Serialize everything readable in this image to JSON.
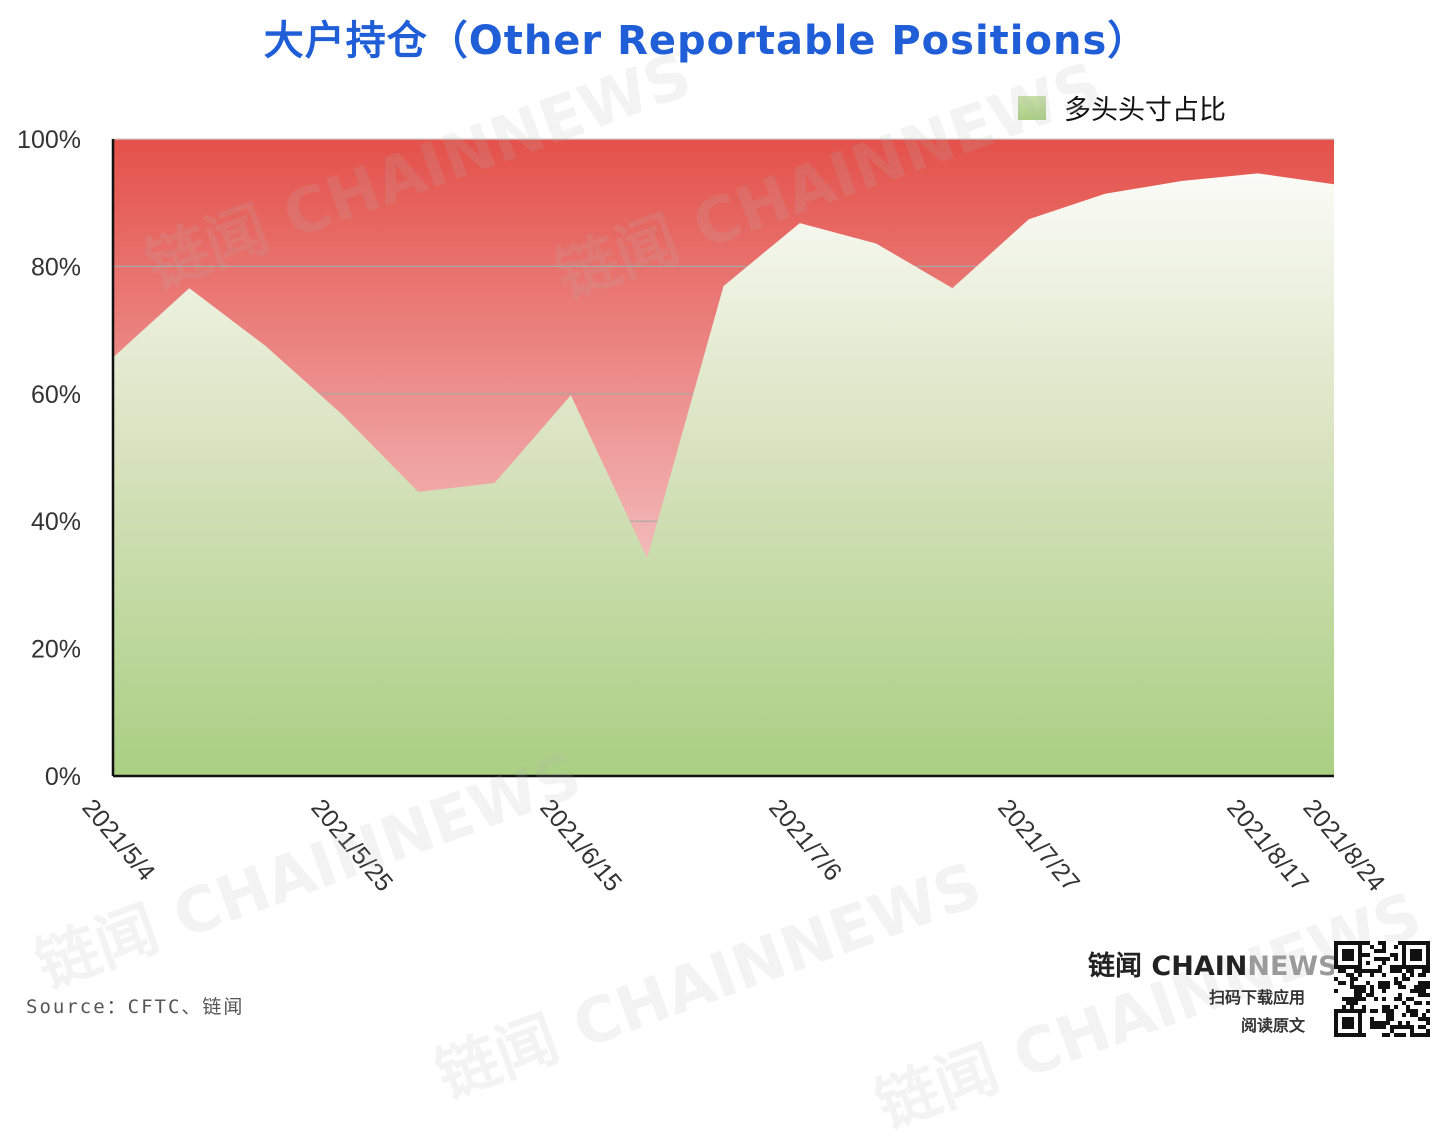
{
  "title": "大户持仓（Other Reportable Positions）",
  "legend": {
    "label": "多头头寸占比"
  },
  "source": "Source：CFTC、链闻",
  "brand": {
    "name_cn": "链闻",
    "name_chain": "CHAIN",
    "name_news": "NEWS",
    "line1": "扫码下载应用",
    "line2": "阅读原文"
  },
  "watermark_text": "链闻 CHAINNEWS",
  "colors": {
    "long_area_top": "#fbfbf7",
    "long_area_bottom": "#a9cf82",
    "short_area_top": "#e4514a",
    "short_area_bottom": "#f2b8b8",
    "title": "#1f5ed6"
  },
  "chart_data": {
    "type": "area",
    "title": "大户持仓（Other Reportable Positions）",
    "xlabel": "",
    "ylabel": "",
    "ylim": [
      0,
      100
    ],
    "y_ticks": [
      "0%",
      "20%",
      "40%",
      "60%",
      "80%",
      "100%"
    ],
    "x_tick_labels": [
      {
        "label": "2021/5/4",
        "index": 0
      },
      {
        "label": "2021/5/25",
        "index": 3
      },
      {
        "label": "2021/6/15",
        "index": 6
      },
      {
        "label": "2021/7/6",
        "index": 9
      },
      {
        "label": "2021/7/27",
        "index": 12
      },
      {
        "label": "2021/8/17",
        "index": 15
      },
      {
        "label": "2021/8/24",
        "index": 16
      }
    ],
    "x": [
      "2021/5/4",
      "2021/5/11",
      "2021/5/18",
      "2021/5/25",
      "2021/6/1",
      "2021/6/8",
      "2021/6/15",
      "2021/6/22",
      "2021/6/29",
      "2021/7/6",
      "2021/7/13",
      "2021/7/20",
      "2021/7/27",
      "2021/8/3",
      "2021/8/10",
      "2021/8/17",
      "2021/8/24"
    ],
    "series": [
      {
        "name": "多头头寸占比",
        "values": [
          65.7,
          76.6,
          67.5,
          56.8,
          44.6,
          46.0,
          59.8,
          34.2,
          76.9,
          86.8,
          83.6,
          76.6,
          87.4,
          91.4,
          93.4,
          94.6,
          92.9
        ]
      }
    ],
    "legend_position": "top-right",
    "grid": true
  }
}
